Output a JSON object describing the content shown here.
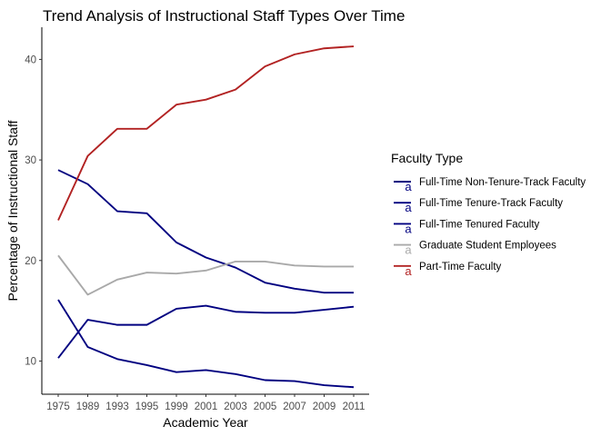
{
  "chart_data": {
    "type": "line",
    "title": "Trend Analysis of Instructional Staff Types Over Time",
    "xlabel": "Academic Year",
    "ylabel": "Percentage of Instructional Staff",
    "categories": [
      "1975",
      "1989",
      "1993",
      "1995",
      "1999",
      "2001",
      "2003",
      "2005",
      "2007",
      "2009",
      "2011"
    ],
    "ylim": [
      6.7,
      43.2
    ],
    "yticks": [
      10,
      20,
      30,
      40
    ],
    "grid": false,
    "legend": {
      "title": "Faculty Type",
      "position": "right",
      "key_glyph": "a"
    },
    "series": [
      {
        "name": "Full-Time Non-Tenure-Track Faculty",
        "color": "#000080",
        "values": [
          10.3,
          14.1,
          13.6,
          13.6,
          15.2,
          15.5,
          14.9,
          14.8,
          14.8,
          15.1,
          15.4
        ]
      },
      {
        "name": "Full-Time Tenure-Track Faculty",
        "color": "#000080",
        "values": [
          16.1,
          11.4,
          10.2,
          9.6,
          8.9,
          9.1,
          8.7,
          8.1,
          8.0,
          7.6,
          7.4
        ]
      },
      {
        "name": "Full-Time Tenured Faculty",
        "color": "#000080",
        "values": [
          29.0,
          27.6,
          24.9,
          24.7,
          21.8,
          20.3,
          19.3,
          17.8,
          17.2,
          16.8,
          16.8
        ]
      },
      {
        "name": "Graduate Student Employees",
        "color": "#a9a9a9",
        "values": [
          20.5,
          16.6,
          18.1,
          18.8,
          18.7,
          19.0,
          19.9,
          19.9,
          19.5,
          19.4,
          19.4
        ]
      },
      {
        "name": "Part-Time Faculty",
        "color": "#b22222",
        "values": [
          24.0,
          30.4,
          33.1,
          33.1,
          35.5,
          36.0,
          37.0,
          39.3,
          40.5,
          41.1,
          41.3
        ]
      }
    ]
  }
}
